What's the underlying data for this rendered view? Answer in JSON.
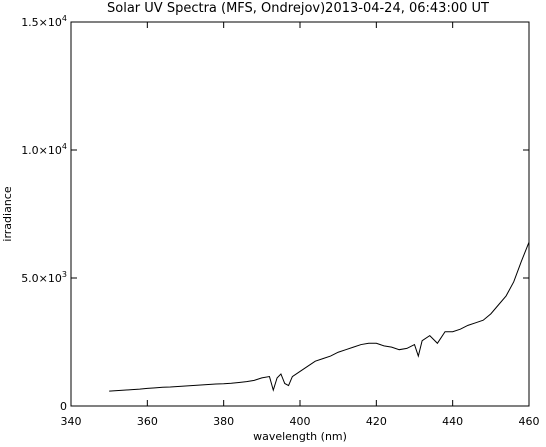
{
  "chart_data": {
    "type": "line",
    "title": "Solar UV Spectra (MFS, Ondrejov)2013-04-24, 06:43:00 UT",
    "xlabel": "wavelength (nm)",
    "ylabel": "irradiance",
    "xlim": [
      340,
      460
    ],
    "ylim": [
      0,
      15000
    ],
    "x_ticks": [
      340,
      360,
      380,
      400,
      420,
      440,
      460
    ],
    "y_ticks": [
      0,
      5000,
      10000,
      15000
    ],
    "y_tick_labels": [
      {
        "mantissa": "0",
        "exponent": ""
      },
      {
        "mantissa": "5.0×10",
        "exponent": "3"
      },
      {
        "mantissa": "1.0×10",
        "exponent": "4"
      },
      {
        "mantissa": "1.5×10",
        "exponent": "4"
      }
    ],
    "grid": false,
    "legend": "none",
    "line_color": "#000000",
    "series": [
      {
        "x": [
          350,
          352,
          354,
          356,
          358,
          360,
          362,
          364,
          366,
          368,
          370,
          372,
          374,
          376,
          378,
          380,
          382,
          384,
          386,
          388,
          390,
          392,
          393,
          394,
          395,
          396,
          397,
          398,
          400,
          402,
          404,
          406,
          408,
          410,
          412,
          414,
          416,
          418,
          420,
          422,
          424,
          426,
          428,
          430,
          431,
          432,
          434,
          436,
          438,
          440,
          442,
          444,
          446,
          448,
          450,
          452,
          454,
          456,
          458,
          460
        ],
        "y": [
          580,
          600,
          620,
          640,
          660,
          690,
          710,
          730,
          740,
          760,
          780,
          800,
          820,
          840,
          860,
          870,
          890,
          920,
          950,
          1000,
          1100,
          1150,
          620,
          1100,
          1250,
          880,
          800,
          1150,
          1350,
          1550,
          1750,
          1850,
          1950,
          2100,
          2200,
          2300,
          2400,
          2450,
          2450,
          2350,
          2300,
          2200,
          2250,
          2400,
          1950,
          2550,
          2750,
          2450,
          2900,
          2900,
          3000,
          3150,
          3250,
          3350,
          3600,
          3950,
          4300,
          4850,
          5650,
          6400
        ]
      }
    ]
  }
}
